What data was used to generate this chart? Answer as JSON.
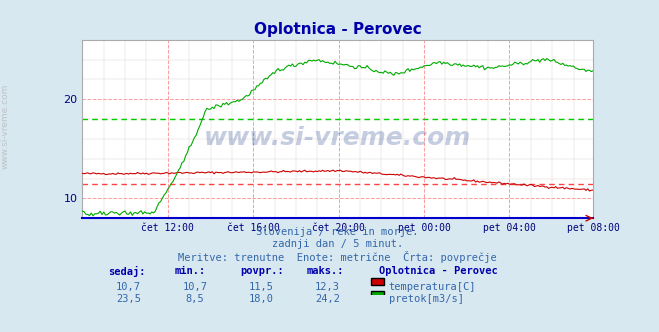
{
  "title": "Oplotnica - Perovec",
  "bg_color": "#d8e8f0",
  "plot_bg_color": "#ffffff",
  "grid_color_major": "#ff9999",
  "grid_color_minor": "#dddddd",
  "xlabel_color": "#000080",
  "title_color": "#0000aa",
  "subtitle_lines": [
    "Slovenija / reke in morje.",
    "zadnji dan / 5 minut.",
    "Meritve: trenutne  Enote: metrične  Črta: povprečje"
  ],
  "x_tick_labels": [
    "čet 12:00",
    "čet 16:00",
    "čet 20:00",
    "pet 00:00",
    "pet 04:00",
    "pet 08:00"
  ],
  "y_min": 8,
  "y_max": 26,
  "y_ticks": [
    10,
    20
  ],
  "avg_temp": 11.5,
  "avg_flow": 18.0,
  "temp_color": "#cc0000",
  "flow_color": "#00aa00",
  "avg_color_temp": "#ff4444",
  "avg_color_flow": "#00cc00",
  "watermark_text": "www.si-vreme.com",
  "table_headers": [
    "sedaj:",
    "min.:",
    "povpr.:",
    "maks.:"
  ],
  "temp_row": [
    "10,7",
    "10,7",
    "11,5",
    "12,3"
  ],
  "flow_row": [
    "23,5",
    "8,5",
    "18,0",
    "24,2"
  ],
  "legend_title": "Oplotnica - Perovec",
  "legend_labels": [
    "temperatura[C]",
    "pretok[m3/s]"
  ],
  "legend_colors": [
    "#cc0000",
    "#00aa00"
  ]
}
